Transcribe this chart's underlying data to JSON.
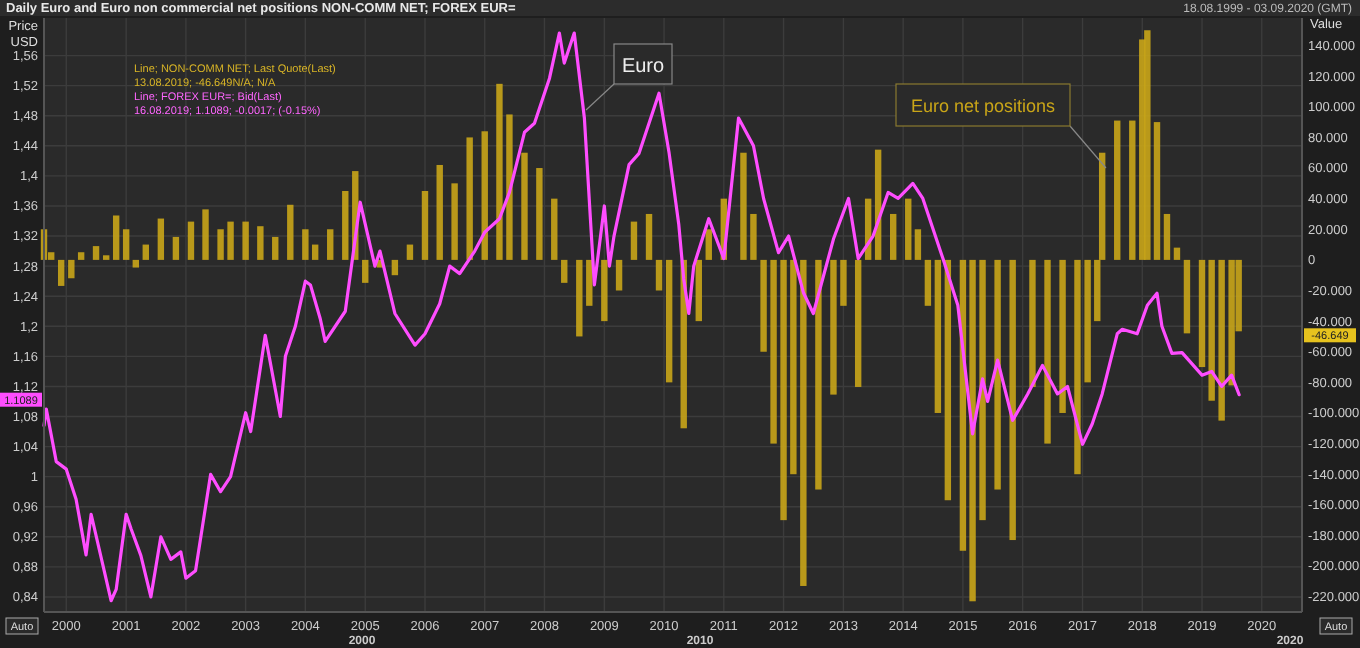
{
  "chart_data": {
    "type": "line",
    "title": "Daily Euro and Euro non commercial net positions NON-COMM NET; FOREX EUR=",
    "ylabel": "Price USD",
    "y2label": "Value",
    "xlim": [
      "1999-08-18",
      "2020-09-03"
    ],
    "xticks": [
      "2000",
      "2001",
      "2002",
      "2003",
      "2004",
      "2005",
      "2006",
      "2007",
      "2008",
      "2009",
      "2010",
      "2011",
      "2012",
      "2013",
      "2014",
      "2015",
      "2016",
      "2017",
      "2018",
      "2019",
      "2020"
    ],
    "ylim": [
      0.82,
      1.61
    ],
    "yticks": [
      {
        "value": 0.84,
        "label": "0,84"
      },
      {
        "value": 0.88,
        "label": "0,88"
      },
      {
        "value": 0.92,
        "label": "0,92"
      },
      {
        "value": 0.96,
        "label": "0,96"
      },
      1,
      {
        "value": 1.04,
        "label": "1,04"
      },
      {
        "value": 1.08,
        "label": "1,08"
      },
      {
        "value": 1.12,
        "label": "1,12"
      },
      {
        "value": 1.16,
        "label": "1,16"
      },
      {
        "value": 1.2,
        "label": "1,2"
      },
      {
        "value": 1.24,
        "label": "1,24"
      },
      {
        "value": 1.28,
        "label": "1,28"
      },
      {
        "value": 1.32,
        "label": "1,32"
      },
      {
        "value": 1.36,
        "label": "1,36"
      },
      {
        "value": 1.4,
        "label": "1,4"
      },
      {
        "value": 1.44,
        "label": "1,44"
      },
      {
        "value": 1.48,
        "label": "1,48"
      },
      {
        "value": 1.52,
        "label": "1,52"
      },
      {
        "value": 1.56,
        "label": "1,56"
      }
    ],
    "y2lim": [
      -230000,
      158000
    ],
    "y2ticks": [
      {
        "value": 140000,
        "label": "140.000"
      },
      {
        "value": 120000,
        "label": "120.000"
      },
      {
        "value": 100000,
        "label": "100.000"
      },
      {
        "value": 80000,
        "label": "80.000"
      },
      {
        "value": 60000,
        "label": "60.000"
      },
      {
        "value": 40000,
        "label": "40.000"
      },
      {
        "value": 20000,
        "label": "20.000"
      },
      0,
      {
        "value": -20000,
        "label": "-20.000"
      },
      {
        "value": -40000,
        "label": "-40.000"
      },
      {
        "value": -60000,
        "label": "-60.000"
      },
      {
        "value": -80000,
        "label": "-80.000"
      },
      {
        "value": -100000,
        "label": "-100.000"
      },
      {
        "value": -120000,
        "label": "-120.000"
      },
      {
        "value": -140000,
        "label": "-140.000"
      },
      {
        "value": -160000,
        "label": "-160.000"
      },
      {
        "value": -180000,
        "label": "-180.000"
      },
      {
        "value": -200000,
        "label": "-200.000"
      },
      {
        "value": -220000,
        "label": "-220.000"
      }
    ],
    "grid": true,
    "series": [
      {
        "name": "Euro net positions",
        "type": "bar",
        "axis": "y2",
        "color": "#c9a518",
        "x": [
          "1999-08-18",
          "1999-10",
          "1999-12",
          "2000-02",
          "2000-04",
          "2000-07",
          "2000-09",
          "2000-11",
          "2001-01",
          "2001-03",
          "2001-05",
          "2001-08",
          "2001-11",
          "2002-02",
          "2002-05",
          "2002-08",
          "2002-10",
          "2003-01",
          "2003-04",
          "2003-07",
          "2003-10",
          "2004-01",
          "2004-03",
          "2004-06",
          "2004-09",
          "2004-11",
          "2005-01",
          "2005-04",
          "2005-07",
          "2005-10",
          "2006-01",
          "2006-04",
          "2006-07",
          "2006-10",
          "2007-01",
          "2007-04",
          "2007-06",
          "2007-09",
          "2007-12",
          "2008-03",
          "2008-05",
          "2008-08",
          "2008-10",
          "2009-01",
          "2009-04",
          "2009-07",
          "2009-10",
          "2009-12",
          "2010-02",
          "2010-05",
          "2010-08",
          "2010-10",
          "2011-01",
          "2011-05",
          "2011-07",
          "2011-09",
          "2011-11",
          "2012-01",
          "2012-03",
          "2012-05",
          "2012-08",
          "2012-11",
          "2013-01",
          "2013-04",
          "2013-06",
          "2013-08",
          "2013-11",
          "2014-02",
          "2014-04",
          "2014-06",
          "2014-08",
          "2014-10",
          "2015-01",
          "2015-03",
          "2015-05",
          "2015-08",
          "2015-11",
          "2016-03",
          "2016-06",
          "2016-09",
          "2016-12",
          "2017-02",
          "2017-04",
          "2017-05",
          "2017-08",
          "2017-11",
          "2018-01",
          "2018-02",
          "2018-04",
          "2018-06",
          "2018-08",
          "2018-10",
          "2019-01",
          "2019-03",
          "2019-05",
          "2019-07",
          "2019-08-13"
        ],
        "values": [
          20000,
          5000,
          -17000,
          -12000,
          5000,
          9000,
          3000,
          29000,
          20000,
          -5000,
          10000,
          27000,
          15000,
          25000,
          33000,
          20000,
          25000,
          25000,
          22000,
          15000,
          36000,
          20000,
          10000,
          20000,
          45000,
          58000,
          -15000,
          -5000,
          -10000,
          10000,
          45000,
          62000,
          50000,
          80000,
          84000,
          115000,
          95000,
          70000,
          60000,
          40000,
          -15000,
          -50000,
          -30000,
          -40000,
          -20000,
          25000,
          30000,
          -20000,
          -80000,
          -110000,
          -40000,
          20000,
          40000,
          70000,
          30000,
          -60000,
          -120000,
          -170000,
          -140000,
          -213000,
          -150000,
          -88000,
          -30000,
          -83000,
          40000,
          72000,
          30000,
          40000,
          20000,
          -30000,
          -100000,
          -157000,
          -190000,
          -223000,
          -170000,
          -150000,
          -183000,
          -83000,
          -120000,
          -100000,
          -140000,
          -80000,
          -40000,
          70000,
          91000,
          91000,
          144000,
          150000,
          90000,
          30000,
          8000,
          -48000,
          -70000,
          -92000,
          -105000,
          -82000,
          -46649
        ]
      },
      {
        "name": "Euro",
        "axis": "y",
        "color": "#ff4dff",
        "x": [
          "1999-08-18",
          "1999-09",
          "1999-11",
          "2000-01",
          "2000-03",
          "2000-05",
          "2000-06",
          "2000-10",
          "2000-11",
          "2001-01",
          "2001-02",
          "2001-04",
          "2001-06",
          "2001-08",
          "2001-10",
          "2001-12",
          "2002-01",
          "2002-03",
          "2002-06",
          "2002-08",
          "2002-10",
          "2003-01",
          "2003-02",
          "2003-05",
          "2003-08",
          "2003-09",
          "2003-11",
          "2004-01",
          "2004-02",
          "2004-04",
          "2004-05",
          "2004-09",
          "2004-12",
          "2005-03",
          "2005-04",
          "2005-07",
          "2005-11",
          "2006-01",
          "2006-04",
          "2006-06",
          "2006-08",
          "2006-11",
          "2007-01",
          "2007-04",
          "2007-06",
          "2007-09",
          "2007-11",
          "2008-02",
          "2008-04",
          "2008-05",
          "2008-07",
          "2008-09",
          "2008-11",
          "2009-01",
          "2009-02",
          "2009-03",
          "2009-06",
          "2009-08",
          "2009-12",
          "2010-02",
          "2010-04",
          "2010-05",
          "2010-06",
          "2010-07",
          "2010-10",
          "2011-01",
          "2011-04",
          "2011-07",
          "2011-09",
          "2011-12",
          "2012-02",
          "2012-05",
          "2012-07",
          "2012-11",
          "2013-02",
          "2013-04",
          "2013-07",
          "2013-10",
          "2013-12",
          "2014-03",
          "2014-05",
          "2014-09",
          "2014-12",
          "2015-03",
          "2015-05",
          "2015-06",
          "2015-08",
          "2015-11",
          "2016-02",
          "2016-05",
          "2016-08",
          "2016-10",
          "2017-01",
          "2017-03",
          "2017-05",
          "2017-08",
          "2017-09",
          "2017-12",
          "2018-02",
          "2018-04",
          "2018-05",
          "2018-07",
          "2018-09",
          "2019-01",
          "2019-03",
          "2019-05",
          "2019-07",
          "2019-08-16"
        ],
        "values": [
          1.068,
          1.09,
          1.02,
          1.01,
          0.97,
          0.896,
          0.95,
          0.835,
          0.85,
          0.95,
          0.93,
          0.895,
          0.84,
          0.92,
          0.89,
          0.9,
          0.865,
          0.875,
          1.003,
          0.98,
          1.0,
          1.085,
          1.06,
          1.188,
          1.08,
          1.16,
          1.2,
          1.26,
          1.255,
          1.21,
          1.18,
          1.22,
          1.365,
          1.28,
          1.3,
          1.217,
          1.175,
          1.19,
          1.23,
          1.28,
          1.27,
          1.3,
          1.325,
          1.343,
          1.378,
          1.458,
          1.47,
          1.53,
          1.59,
          1.55,
          1.59,
          1.477,
          1.255,
          1.36,
          1.28,
          1.32,
          1.415,
          1.43,
          1.51,
          1.43,
          1.335,
          1.263,
          1.217,
          1.28,
          1.343,
          1.29,
          1.477,
          1.44,
          1.37,
          1.298,
          1.32,
          1.245,
          1.217,
          1.316,
          1.37,
          1.29,
          1.32,
          1.378,
          1.37,
          1.39,
          1.37,
          1.29,
          1.228,
          1.057,
          1.13,
          1.1,
          1.155,
          1.075,
          1.11,
          1.148,
          1.11,
          1.12,
          1.043,
          1.07,
          1.11,
          1.19,
          1.196,
          1.19,
          1.228,
          1.244,
          1.2,
          1.164,
          1.165,
          1.135,
          1.14,
          1.12,
          1.135,
          1.109
        ]
      }
    ],
    "annotations": [
      "18.08.1999 - 03.09.2020 (GMT)",
      "Line; NON-COMM NET; Last Quote(Last)",
      "13.08.2019; -46.649N/A; N/A",
      "Line; FOREX EUR=; Bid(Last)",
      "16.08.2019; 1.1089; -0.0017; (-0.15%)",
      "1.1089",
      "-46.649",
      "2000",
      "2010",
      "2020",
      "Auto",
      "Auto"
    ]
  }
}
